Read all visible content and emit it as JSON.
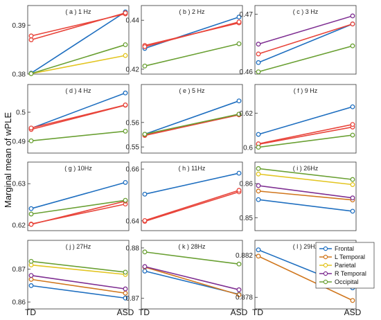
{
  "colors": {
    "Frontal": "#1f6fc0",
    "L Temporal": "#d0761c",
    "Parietal": "#e3c521",
    "R Temporal": "#7f2f92",
    "Occipital": "#6aa033",
    "Overlap": "#e8443a"
  },
  "chart_data": {
    "type": "line",
    "ylabel": "Marginal mean of wPLE",
    "xlabels": [
      "TD",
      "ASD"
    ],
    "legend": {
      "placement": "bottom-right",
      "entries": [
        "Frontal",
        "L Temporal",
        "Parietal",
        "R Temporal",
        "Occipital"
      ]
    },
    "panels": [
      {
        "title": "( a ) 1 Hz",
        "ylim": [
          0.38,
          0.394
        ],
        "yticks": [
          "0.38",
          "0.39"
        ],
        "series": [
          {
            "name": "Frontal",
            "values": [
              0.3802,
              0.3927
            ]
          },
          {
            "name": "L Temporal",
            "values": [
              0.3878,
              0.3923
            ],
            "overlap": true
          },
          {
            "name": "Parietal",
            "values": [
              0.3801,
              0.3838
            ]
          },
          {
            "name": "R Temporal",
            "values": [
              0.387,
              0.3925
            ],
            "overlap": true
          },
          {
            "name": "Occipital",
            "values": [
              0.3801,
              0.386
            ]
          }
        ]
      },
      {
        "title": "( b ) 2 Hz",
        "ylim": [
          0.418,
          0.446
        ],
        "yticks": [
          "0.42",
          "0.44"
        ],
        "series": [
          {
            "name": "Frontal",
            "values": [
              0.4285,
              0.4413
            ]
          },
          {
            "name": "L Temporal",
            "values": [
              0.4297,
              0.4389
            ],
            "overlap": true
          },
          {
            "name": "R Temporal",
            "values": [
              0.4292,
              0.4393
            ],
            "overlap": true
          },
          {
            "name": "Occipital",
            "values": [
              0.4213,
              0.4304
            ]
          }
        ]
      },
      {
        "title": "( c ) 3 Hz",
        "ylim": [
          0.4596,
          0.4715
        ],
        "yticks": [
          "0.46",
          "0.47"
        ],
        "series": [
          {
            "name": "Frontal",
            "values": [
              0.4616,
              0.4683
            ]
          },
          {
            "name": "L Temporal",
            "values": [
              0.4631,
              0.4683
            ],
            "overlap": true
          },
          {
            "name": "R Temporal",
            "values": [
              0.4648,
              0.4697
            ]
          },
          {
            "name": "Occipital",
            "values": [
              0.46,
              0.4645
            ]
          }
        ]
      },
      {
        "title": "( d ) 4 Hz",
        "ylim": [
          0.486,
          0.5095
        ],
        "yticks": [
          "0.49",
          "0.5"
        ],
        "series": [
          {
            "name": "Frontal",
            "values": [
              0.4945,
              0.5066
            ]
          },
          {
            "name": "L Temporal",
            "values": [
              0.4941,
              0.5024
            ],
            "overlap": true
          },
          {
            "name": "R Temporal",
            "values": [
              0.4946,
              0.5025
            ],
            "overlap": true
          },
          {
            "name": "Occipital",
            "values": [
              0.4902,
              0.4935
            ]
          }
        ]
      },
      {
        "title": "( e ) 5 Hz",
        "ylim": [
          0.5475,
          0.5755
        ],
        "yticks": [
          "0.55",
          "0.56"
        ],
        "series": [
          {
            "name": "Frontal",
            "values": [
              0.5552,
              0.5688
            ]
          },
          {
            "name": "L Temporal",
            "values": [
              0.5547,
              0.5631
            ],
            "overlap": true
          },
          {
            "name": "R Temporal",
            "values": [
              0.5549,
              0.5634
            ],
            "overlap": true
          },
          {
            "name": "Occipital",
            "values": [
              0.5552,
              0.5634
            ]
          }
        ]
      },
      {
        "title": "( f ) 9 Hz",
        "ylim": [
          0.5967,
          0.6367
        ],
        "yticks": [
          "0.6",
          "0.62"
        ],
        "series": [
          {
            "name": "Frontal",
            "values": [
              0.6076,
              0.6237
            ]
          },
          {
            "name": "L Temporal",
            "values": [
              0.6018,
              0.6119
            ],
            "overlap": true
          },
          {
            "name": "R Temporal",
            "values": [
              0.6021,
              0.6134
            ],
            "overlap": true
          },
          {
            "name": "Occipital",
            "values": [
              0.6001,
              0.6072
            ]
          }
        ]
      },
      {
        "title": "( g ) 10Hz",
        "ylim": [
          0.6187,
          0.6352
        ],
        "yticks": [
          "0.62",
          "0.63"
        ],
        "series": [
          {
            "name": "Frontal",
            "values": [
              0.624,
              0.6303
            ]
          },
          {
            "name": "L Temporal",
            "values": [
              0.6203,
              0.6251
            ],
            "overlap": true
          },
          {
            "name": "R Temporal",
            "values": [
              0.6202,
              0.6258
            ],
            "overlap": true
          },
          {
            "name": "Occipital",
            "values": [
              0.6227,
              0.626
            ]
          }
        ]
      },
      {
        "title": "( h ) 11Hz",
        "ylim": [
          0.6362,
          0.6627
        ],
        "yticks": [
          "0.64",
          "0.66"
        ],
        "series": [
          {
            "name": "Frontal",
            "values": [
              0.6503,
              0.6584
            ]
          },
          {
            "name": "L Temporal",
            "values": [
              0.6398,
              0.6512
            ],
            "overlap": true
          },
          {
            "name": "R Temporal",
            "values": [
              0.6401,
              0.6518
            ],
            "overlap": true
          }
        ]
      },
      {
        "title": "( i ) 26Hz",
        "ylim": [
          0.8462,
          0.8663
        ],
        "yticks": [
          "0.85",
          "0.86"
        ],
        "series": [
          {
            "name": "Frontal",
            "values": [
              0.8553,
              0.8519
            ]
          },
          {
            "name": "L Temporal",
            "values": [
              0.8578,
              0.8552
            ]
          },
          {
            "name": "Parietal",
            "values": [
              0.8628,
              0.8597
            ]
          },
          {
            "name": "R Temporal",
            "values": [
              0.8594,
              0.8558
            ]
          },
          {
            "name": "Occipital",
            "values": [
              0.8644,
              0.8612
            ]
          }
        ]
      },
      {
        "title": "( j ) 27Hz",
        "ylim": [
          0.8579,
          0.8788
        ],
        "yticks": [
          "0.86",
          "0.87"
        ],
        "series": [
          {
            "name": "Frontal",
            "values": [
              0.865,
              0.8612
            ]
          },
          {
            "name": "L Temporal",
            "values": [
              0.8669,
              0.8627
            ]
          },
          {
            "name": "Parietal",
            "values": [
              0.8713,
              0.8684
            ]
          },
          {
            "name": "R Temporal",
            "values": [
              0.8681,
              0.864
            ]
          },
          {
            "name": "Occipital",
            "values": [
              0.8724,
              0.8691
            ]
          }
        ]
      },
      {
        "title": "( k ) 28Hz",
        "ylim": [
          0.8679,
          0.8815
        ],
        "yticks": [
          "0.87",
          "0.88"
        ],
        "series": [
          {
            "name": "Frontal",
            "values": [
              0.8754,
              0.8708
            ]
          },
          {
            "name": "L Temporal",
            "values": [
              0.8762,
              0.8707
            ]
          },
          {
            "name": "R Temporal",
            "values": [
              0.8763,
              0.8717
            ]
          },
          {
            "name": "Occipital",
            "values": [
              0.8792,
              0.8768
            ]
          }
        ]
      },
      {
        "title": "( l ) 29Hz",
        "ylim": [
          0.8769,
          0.8834
        ],
        "yticks": [
          "0.878",
          "0.882"
        ],
        "series": [
          {
            "name": "Frontal",
            "values": [
              0.8825,
              0.8789
            ]
          },
          {
            "name": "L Temporal",
            "values": [
              0.8819,
              0.8777
            ]
          }
        ]
      }
    ]
  }
}
